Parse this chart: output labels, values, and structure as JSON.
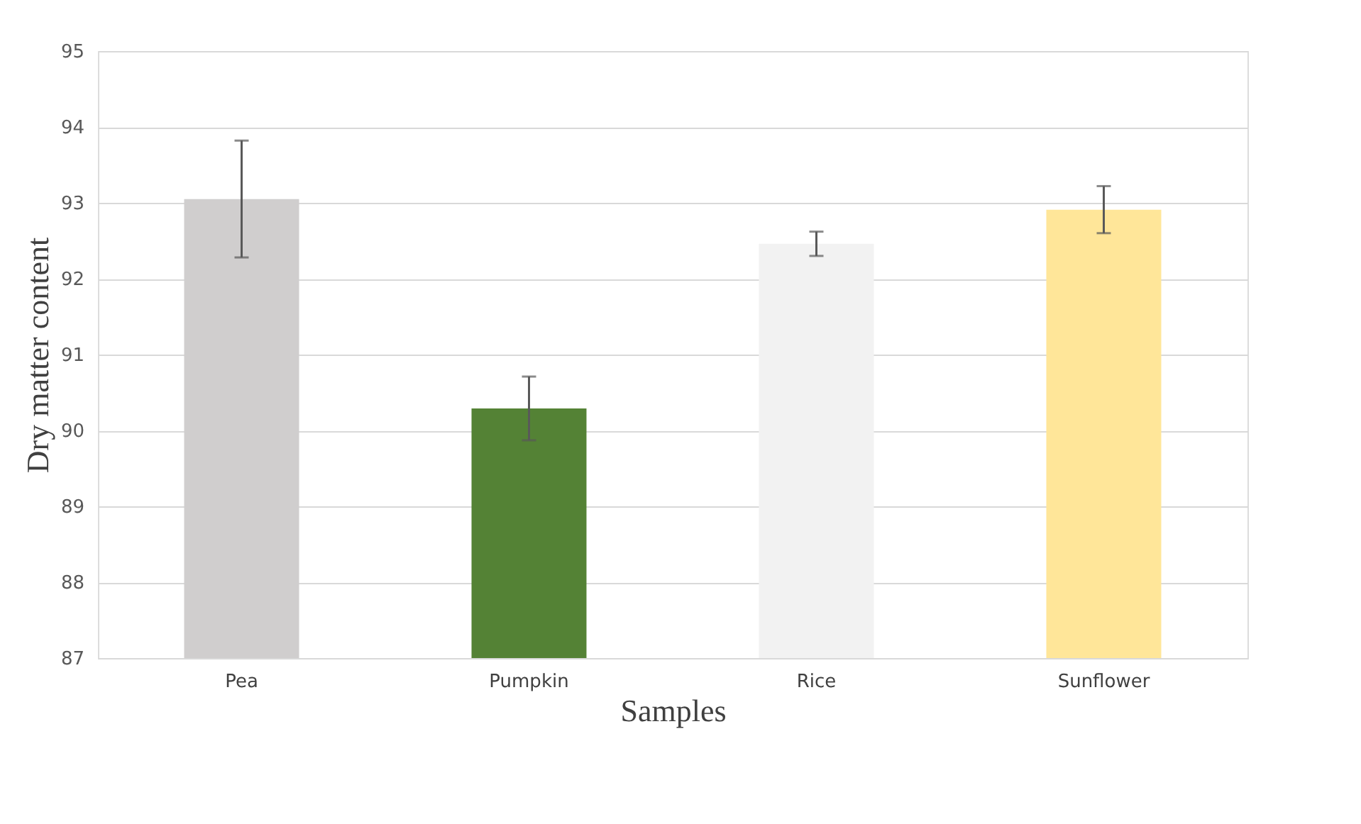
{
  "chart_data": {
    "type": "bar",
    "xlabel": "Samples",
    "ylabel": "Dry matter content",
    "categories": [
      "Pea",
      "Pumpkin",
      "Rice",
      "Sunflower"
    ],
    "values": [
      93.05,
      90.29,
      92.46,
      92.91
    ],
    "colors": [
      "#d0cece",
      "#548235",
      "#f2f2f2",
      "#ffe699"
    ],
    "errors": [
      0.77,
      0.42,
      0.16,
      0.31
    ],
    "ylim": [
      87,
      95
    ],
    "yticks": [
      87,
      88,
      89,
      90,
      91,
      92,
      93,
      94,
      95
    ],
    "grid": "y"
  }
}
